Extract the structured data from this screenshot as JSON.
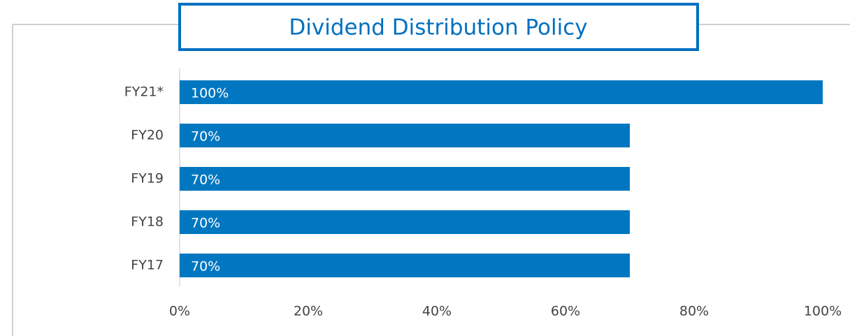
{
  "chart_data": {
    "type": "bar",
    "orientation": "horizontal",
    "title": "Dividend Distribution Policy",
    "categories": [
      "FY21*",
      "FY20",
      "FY19",
      "FY18",
      "FY17"
    ],
    "values": [
      100,
      70,
      70,
      70,
      70
    ],
    "value_labels": [
      "100%",
      "70%",
      "70%",
      "70%",
      "70%"
    ],
    "color": "#0077c0",
    "xlim": [
      0,
      100
    ],
    "xticks": [
      {
        "value": 0,
        "label": "0%"
      },
      {
        "value": 20,
        "label": "20%"
      },
      {
        "value": 40,
        "label": "40%"
      },
      {
        "value": 60,
        "label": "60%"
      },
      {
        "value": 80,
        "label": "80%"
      },
      {
        "value": 100,
        "label": "100%"
      }
    ],
    "grid": false
  }
}
